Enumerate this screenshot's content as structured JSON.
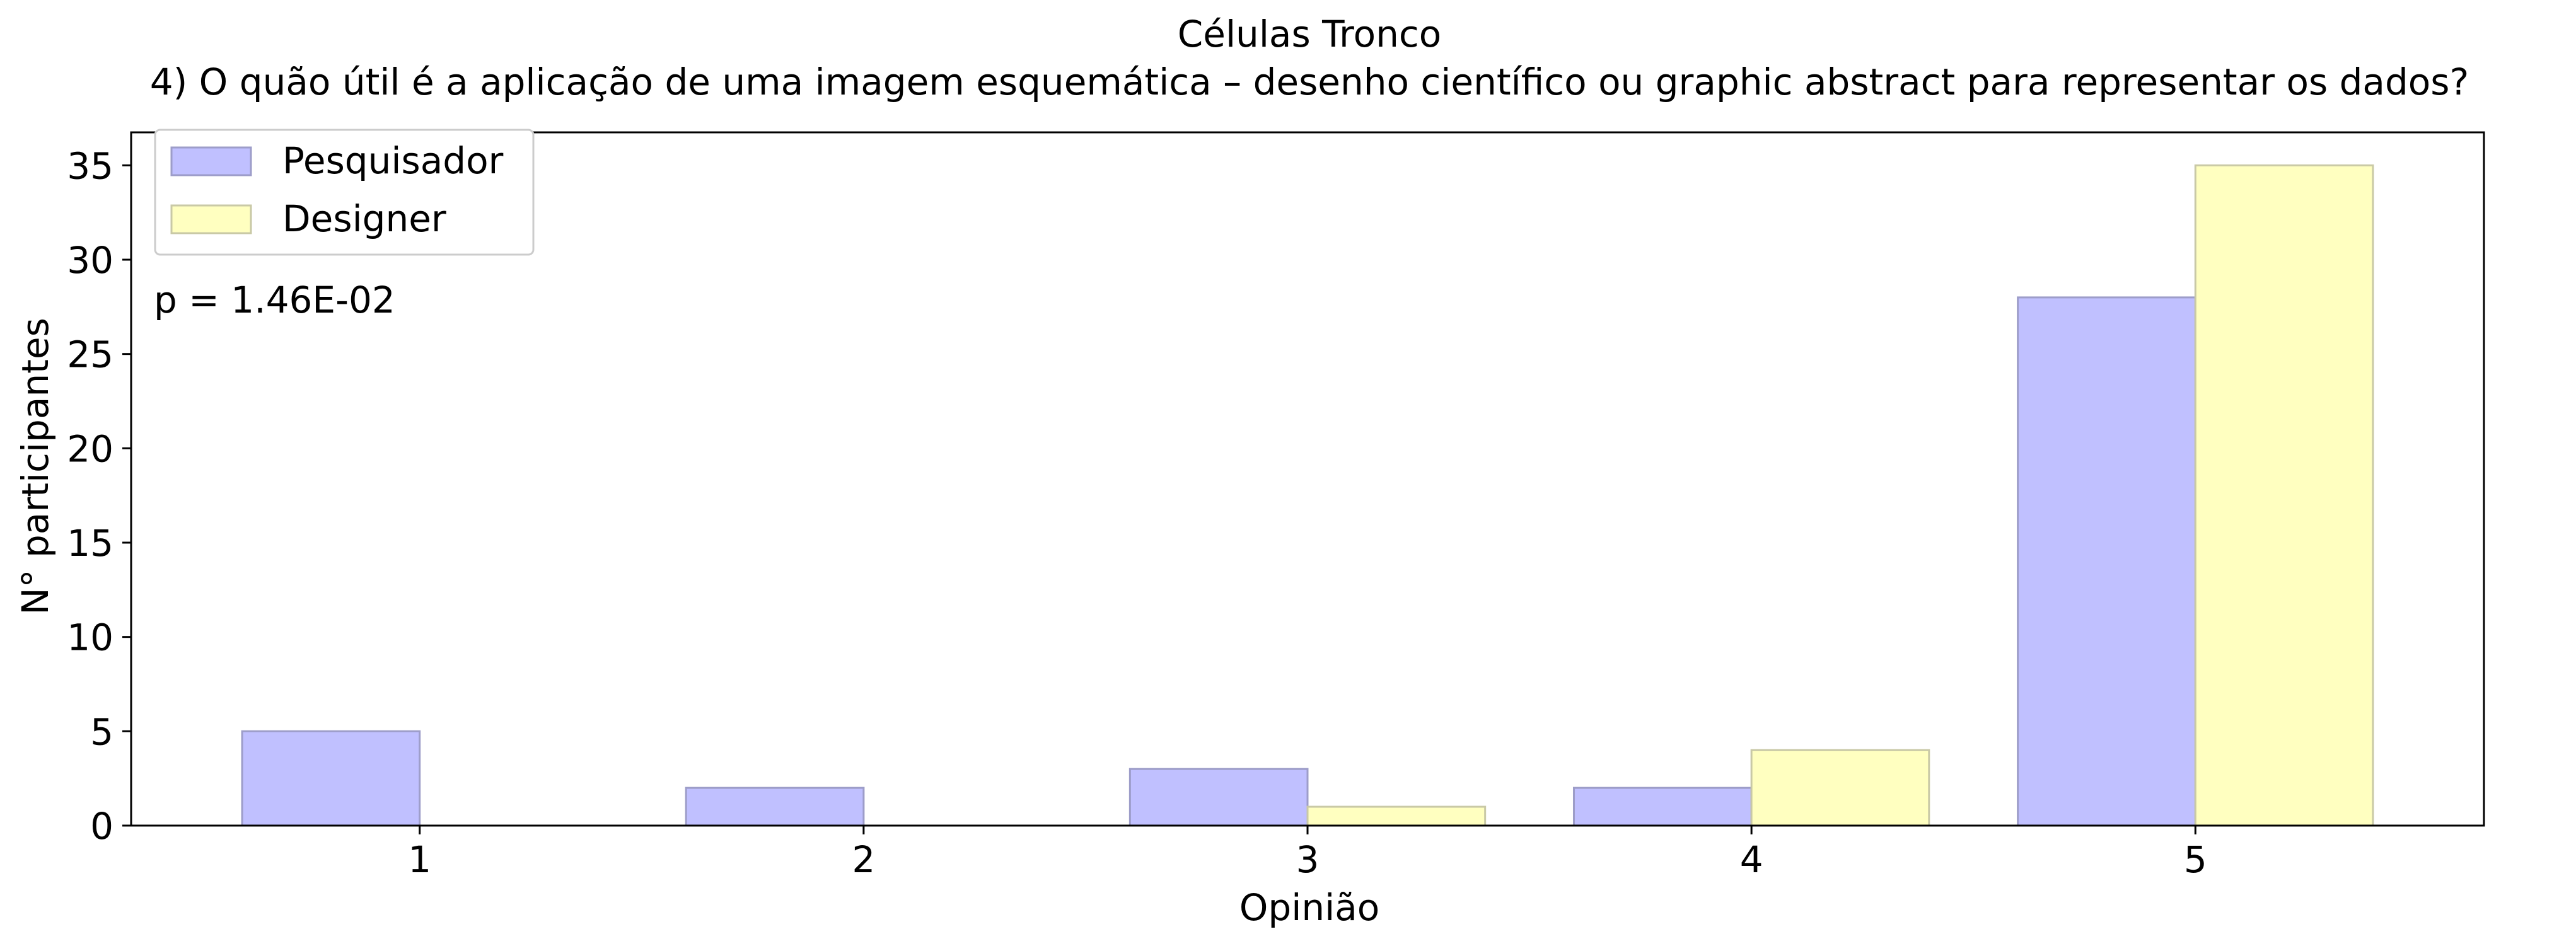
{
  "chart_data": {
    "type": "bar",
    "title": "Células Tronco",
    "subtitle": "4) O quão útil é a aplicação de uma imagem esquemática – desenho científico ou graphic abstract para representar os dados?",
    "xlabel": "Opinião",
    "ylabel": "N° participantes",
    "categories": [
      "1",
      "2",
      "3",
      "4",
      "5"
    ],
    "series": [
      {
        "name": "Pesquisador",
        "values": [
          5,
          2,
          3,
          2,
          28
        ],
        "color": "#c0c0ff",
        "edge": "#9d9dc9"
      },
      {
        "name": "Designer",
        "values": [
          0,
          0,
          1,
          4,
          35
        ],
        "color": "#ffffc0",
        "edge": "#c9c9a6"
      }
    ],
    "ylim": [
      0,
      36.75
    ],
    "yticks": [
      "0",
      "5",
      "10",
      "15",
      "20",
      "25",
      "30",
      "35"
    ],
    "grid": false,
    "legend_position": "top-left",
    "annotation": "p = 1.46E-02"
  }
}
